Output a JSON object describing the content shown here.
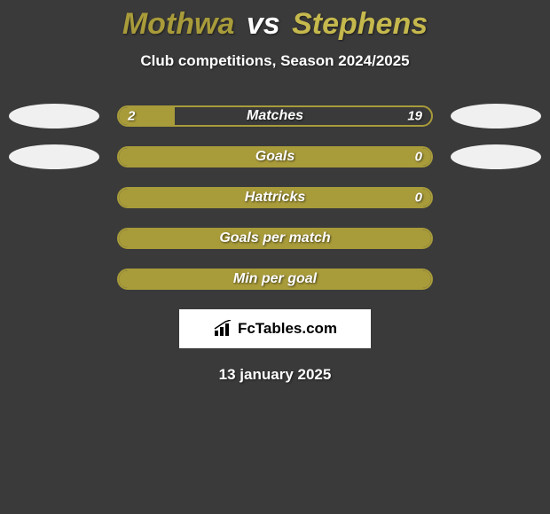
{
  "title": {
    "player1": "Mothwa",
    "vs": "vs",
    "player2": "Stephens",
    "player1_color": "#a89b3a",
    "player2_color": "#c5b84d"
  },
  "subtitle": "Club competitions, Season 2024/2025",
  "colors": {
    "background": "#3a3a3a",
    "bar_fill": "#a89b3a",
    "bar_border": "#a89b3a",
    "text": "#ffffff",
    "avatar": "#f0f0f0"
  },
  "stats": [
    {
      "label": "Matches",
      "left_value": "2",
      "right_value": "19",
      "left_pct": 18,
      "right_pct": 0,
      "full": false,
      "show_avatars": true
    },
    {
      "label": "Goals",
      "left_value": "",
      "right_value": "0",
      "left_pct": 0,
      "right_pct": 0,
      "full": true,
      "show_avatars": true
    },
    {
      "label": "Hattricks",
      "left_value": "",
      "right_value": "0",
      "left_pct": 0,
      "right_pct": 0,
      "full": true,
      "show_avatars": false
    },
    {
      "label": "Goals per match",
      "left_value": "",
      "right_value": "",
      "left_pct": 0,
      "right_pct": 0,
      "full": true,
      "show_avatars": false
    },
    {
      "label": "Min per goal",
      "left_value": "",
      "right_value": "",
      "left_pct": 0,
      "right_pct": 0,
      "full": true,
      "show_avatars": false
    }
  ],
  "brand": "FcTables.com",
  "date": "13 january 2025"
}
